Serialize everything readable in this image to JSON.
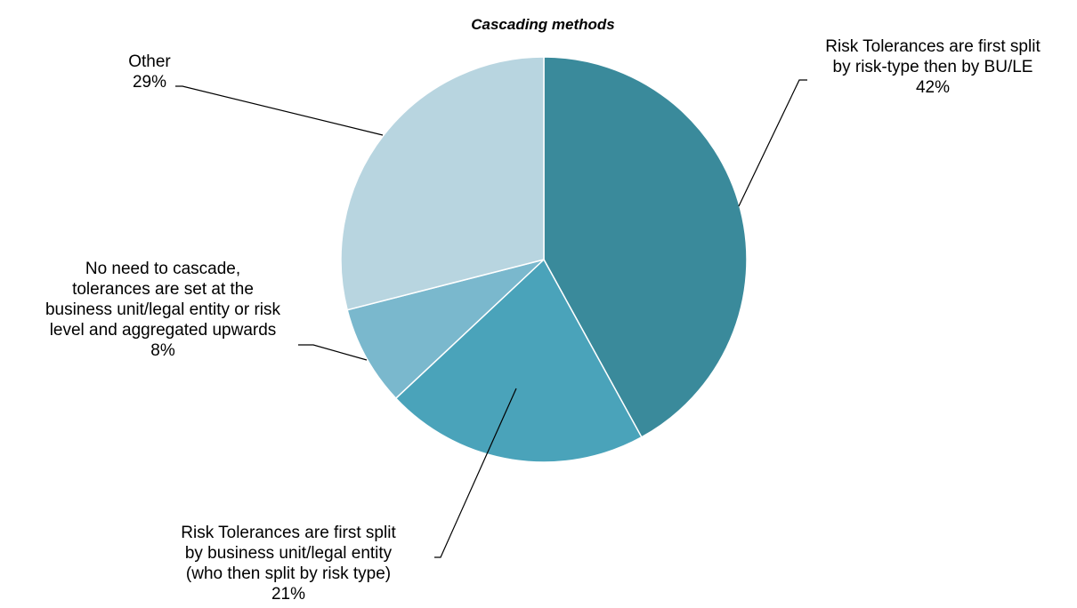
{
  "chart_data": {
    "type": "pie",
    "title": "Cascading methods",
    "slices": [
      {
        "label_lines": [
          "Risk Tolerances are first split",
          "by risk-type then by BU/LE"
        ],
        "value": 42,
        "value_label": "42%",
        "color": "#3a8a9b"
      },
      {
        "label_lines": [
          "Risk Tolerances are first split",
          "by business unit/legal entity",
          "(who then split by risk type)"
        ],
        "value": 21,
        "value_label": "21%",
        "color": "#4aa3ba"
      },
      {
        "label_lines": [
          "No need to cascade,",
          "tolerances are set at the",
          "business unit/legal entity or risk",
          "level and aggregated upwards"
        ],
        "value": 8,
        "value_label": "8%",
        "color": "#7ab8cd"
      },
      {
        "label_lines": [
          "Other"
        ],
        "value": 29,
        "value_label": "29%",
        "color": "#b8d5e0"
      }
    ],
    "start_angle": "12 o'clock",
    "direction": "clockwise",
    "legend": "none",
    "data_labels": "outside with leader lines"
  }
}
